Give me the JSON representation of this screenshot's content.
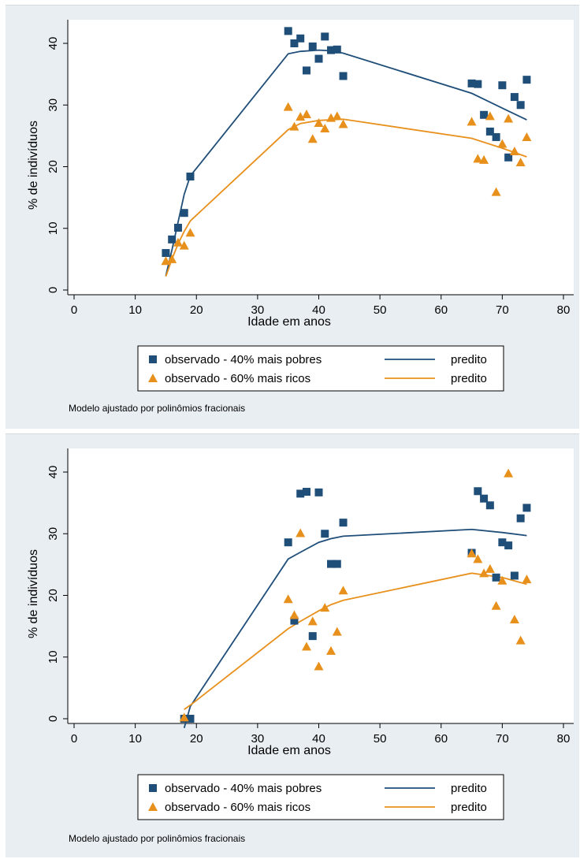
{
  "chart_data": [
    {
      "type": "scatter",
      "xlabel": "Idade em anos",
      "ylabel": "% de indivíduos",
      "xlim": [
        0,
        80
      ],
      "ylim": [
        0,
        40
      ],
      "xticks": [
        0,
        10,
        20,
        30,
        40,
        50,
        60,
        70,
        80
      ],
      "yticks": [
        0,
        10,
        20,
        30,
        40
      ],
      "grid": false,
      "legend_position": "bottom",
      "note": "Modelo ajustado por polinômios fracionais",
      "series": [
        {
          "name": "observado - 40% mais pobres",
          "kind": "observed",
          "marker": "square",
          "color": "#1f4e79",
          "x": [
            15,
            16,
            17,
            18,
            19,
            35,
            36,
            37,
            38,
            39,
            40,
            41,
            42,
            43,
            44,
            65,
            66,
            67,
            68,
            69,
            70,
            71,
            72,
            73,
            74
          ],
          "y": [
            6.0,
            8.2,
            10.1,
            12.5,
            18.4,
            42.0,
            40.0,
            40.8,
            35.6,
            39.5,
            37.5,
            41.1,
            38.9,
            39.0,
            34.7,
            33.5,
            33.4,
            28.4,
            25.7,
            24.8,
            33.2,
            21.5,
            31.3,
            30.0,
            34.1
          ]
        },
        {
          "name": "observado - 60% mais ricos",
          "kind": "observed",
          "marker": "triangle",
          "color": "#e8901c",
          "x": [
            15,
            16,
            17,
            18,
            19,
            35,
            36,
            37,
            38,
            39,
            40,
            41,
            42,
            43,
            44,
            65,
            66,
            67,
            68,
            69,
            70,
            71,
            72,
            73,
            74
          ],
          "y": [
            4.7,
            5.0,
            7.7,
            7.2,
            9.3,
            29.7,
            26.5,
            28.1,
            28.5,
            24.5,
            27.1,
            26.2,
            27.9,
            28.2,
            26.9,
            27.3,
            21.3,
            21.1,
            28.2,
            15.9,
            23.7,
            27.8,
            22.5,
            20.7,
            24.8
          ]
        },
        {
          "name": "predito",
          "kind": "fitted",
          "color": "#1f4e79",
          "x": [
            15,
            16,
            17,
            18,
            19,
            35,
            37,
            40,
            42,
            44,
            65,
            70,
            74
          ],
          "y": [
            2.3,
            6.5,
            11.0,
            15.5,
            18.5,
            38.3,
            38.7,
            38.9,
            38.8,
            38.4,
            31.9,
            29.5,
            27.6
          ]
        },
        {
          "name": "predito",
          "kind": "fitted",
          "color": "#e8901c",
          "x": [
            15,
            16,
            17,
            18,
            19,
            35,
            37,
            40,
            42,
            44,
            65,
            70,
            74
          ],
          "y": [
            2.2,
            5.0,
            7.5,
            9.5,
            11.2,
            26.0,
            27.0,
            27.5,
            27.6,
            27.7,
            24.6,
            23.0,
            21.6
          ]
        }
      ]
    },
    {
      "type": "scatter",
      "xlabel": "Idade em anos",
      "ylabel": "% de indivíduos",
      "xlim": [
        0,
        80
      ],
      "ylim": [
        0,
        40
      ],
      "xticks": [
        0,
        10,
        20,
        30,
        40,
        50,
        60,
        70,
        80
      ],
      "yticks": [
        0,
        10,
        20,
        30,
        40
      ],
      "grid": false,
      "legend_position": "bottom",
      "note": "Modelo ajustado por polinômios fracionais",
      "series": [
        {
          "name": "observado - 40% mais pobres",
          "kind": "observed",
          "marker": "square",
          "color": "#1f4e79",
          "x": [
            18,
            19,
            35,
            36,
            37,
            38,
            39,
            40,
            41,
            42,
            43,
            44,
            65,
            66,
            67,
            68,
            69,
            70,
            71,
            72,
            73,
            74
          ],
          "y": [
            0,
            0,
            28.6,
            15.9,
            36.5,
            36.8,
            13.4,
            36.7,
            30.0,
            25.1,
            25.1,
            31.8,
            26.9,
            36.9,
            35.7,
            34.6,
            22.9,
            28.6,
            28.1,
            23.2,
            32.5,
            34.2
          ]
        },
        {
          "name": "observado - 60% mais ricos",
          "kind": "observed",
          "marker": "triangle",
          "color": "#e8901c",
          "x": [
            18,
            35,
            36,
            37,
            38,
            39,
            40,
            41,
            42,
            43,
            44,
            65,
            66,
            67,
            68,
            69,
            70,
            71,
            72,
            73,
            74
          ],
          "y": [
            0.2,
            19.4,
            16.8,
            30.1,
            11.7,
            15.8,
            8.5,
            18.0,
            11.0,
            14.1,
            20.8,
            26.8,
            25.9,
            23.6,
            24.3,
            18.3,
            22.4,
            39.8,
            16.1,
            12.7,
            22.6
          ]
        },
        {
          "name": "predito",
          "kind": "fitted",
          "color": "#1f4e79",
          "x": [
            18,
            19,
            35,
            37,
            40,
            42,
            44,
            65,
            70,
            74
          ],
          "y": [
            -1.5,
            2.0,
            25.9,
            27.0,
            28.6,
            29.2,
            29.6,
            30.7,
            30.2,
            29.7
          ]
        },
        {
          "name": "predito",
          "kind": "fitted",
          "color": "#e8901c",
          "x": [
            18,
            19,
            35,
            37,
            40,
            42,
            44,
            65,
            70,
            74
          ],
          "y": [
            1.5,
            2.2,
            14.6,
            15.8,
            17.5,
            18.5,
            19.2,
            23.6,
            22.9,
            21.8
          ]
        }
      ]
    }
  ]
}
